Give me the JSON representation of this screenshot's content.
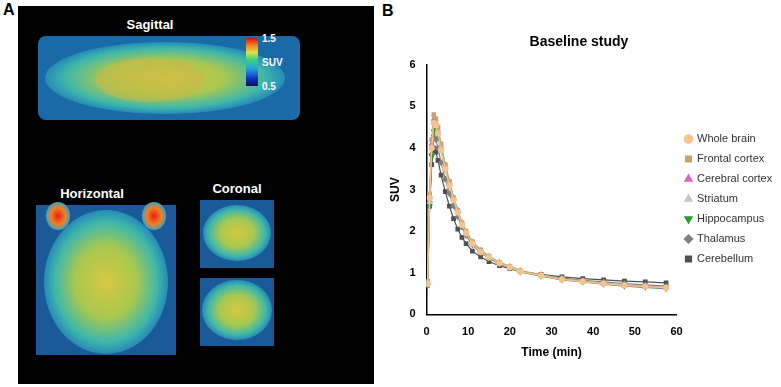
{
  "figure": {
    "panels": [
      {
        "label": "A",
        "views": [
          "Sagittal",
          "Horizontal",
          "Coronal"
        ],
        "colorbar": {
          "title": "SUV",
          "range": [
            0.5,
            1.5
          ],
          "ticks": [
            0.5,
            1.5
          ]
        }
      },
      {
        "label": "B"
      }
    ]
  },
  "chart_data": {
    "type": "line",
    "title": "Baseline study",
    "x_label": "Time (min)",
    "y_label": "SUV",
    "x": [
      0.25,
      0.75,
      1.25,
      1.75,
      2.25,
      2.75,
      3.5,
      4.5,
      5.5,
      6.5,
      7.5,
      8.5,
      9.5,
      11,
      13,
      15,
      17.5,
      20,
      22.5,
      27.5,
      32.5,
      37.5,
      42.5,
      47.5,
      52.5,
      57.5
    ],
    "xlim": [
      0,
      60
    ],
    "xticks": [
      0,
      10,
      20,
      30,
      40,
      50,
      60
    ],
    "ylim": [
      0,
      6
    ],
    "yticks": [
      0,
      1,
      2,
      3,
      4,
      5,
      6
    ],
    "grid": false,
    "legend": "right",
    "series": [
      {
        "name": "Whole brain",
        "color": "#f6c48e",
        "marker": "circle",
        "values": [
          0.75,
          2.8,
          4.0,
          4.6,
          4.55,
          4.35,
          3.95,
          3.5,
          3.1,
          2.75,
          2.45,
          2.15,
          1.95,
          1.7,
          1.5,
          1.37,
          1.23,
          1.13,
          1.03,
          0.93,
          0.84,
          0.79,
          0.74,
          0.7,
          0.67,
          0.64
        ]
      },
      {
        "name": "Frontal cortex",
        "color": "#c9a36e",
        "marker": "square",
        "values": [
          0.8,
          2.9,
          4.2,
          4.8,
          4.7,
          4.5,
          4.1,
          3.6,
          3.2,
          2.8,
          2.5,
          2.2,
          2.0,
          1.75,
          1.55,
          1.4,
          1.25,
          1.15,
          1.05,
          0.95,
          0.85,
          0.8,
          0.75,
          0.7,
          0.68,
          0.65
        ]
      },
      {
        "name": "Cerebral cortex",
        "color": "#e060c0",
        "marker": "triangle",
        "values": [
          0.78,
          2.85,
          4.1,
          4.7,
          4.6,
          4.4,
          4.0,
          3.55,
          3.15,
          2.78,
          2.48,
          2.18,
          1.97,
          1.72,
          1.52,
          1.38,
          1.24,
          1.14,
          1.04,
          0.94,
          0.84,
          0.79,
          0.74,
          0.69,
          0.66,
          0.63
        ]
      },
      {
        "name": "Striatum",
        "color": "#c8c8c8",
        "marker": "triangle",
        "values": [
          0.7,
          2.7,
          4.0,
          4.65,
          4.6,
          4.45,
          4.05,
          3.6,
          3.2,
          2.82,
          2.52,
          2.22,
          2.0,
          1.75,
          1.55,
          1.4,
          1.26,
          1.16,
          1.06,
          0.95,
          0.85,
          0.8,
          0.75,
          0.7,
          0.67,
          0.64
        ]
      },
      {
        "name": "Hippocampus",
        "color": "#2a9a2a",
        "marker": "triangle-down",
        "values": [
          0.7,
          2.6,
          3.8,
          4.4,
          4.45,
          4.3,
          3.95,
          3.5,
          3.1,
          2.75,
          2.45,
          2.15,
          1.95,
          1.7,
          1.5,
          1.36,
          1.22,
          1.12,
          1.02,
          0.92,
          0.83,
          0.78,
          0.73,
          0.68,
          0.65,
          0.62
        ]
      },
      {
        "name": "Thalamus",
        "color": "#808080",
        "marker": "diamond",
        "values": [
          0.72,
          2.7,
          3.85,
          4.3,
          4.2,
          4.0,
          3.65,
          3.25,
          2.9,
          2.6,
          2.35,
          2.1,
          1.9,
          1.67,
          1.48,
          1.35,
          1.22,
          1.13,
          1.04,
          0.95,
          0.87,
          0.82,
          0.78,
          0.74,
          0.71,
          0.68
        ]
      },
      {
        "name": "Cerebellum",
        "color": "#505050",
        "marker": "square",
        "values": [
          0.7,
          2.6,
          3.6,
          4.0,
          3.9,
          3.7,
          3.35,
          2.95,
          2.6,
          2.3,
          2.05,
          1.85,
          1.7,
          1.52,
          1.38,
          1.27,
          1.17,
          1.1,
          1.03,
          0.96,
          0.9,
          0.86,
          0.83,
          0.8,
          0.78,
          0.76
        ]
      }
    ]
  }
}
